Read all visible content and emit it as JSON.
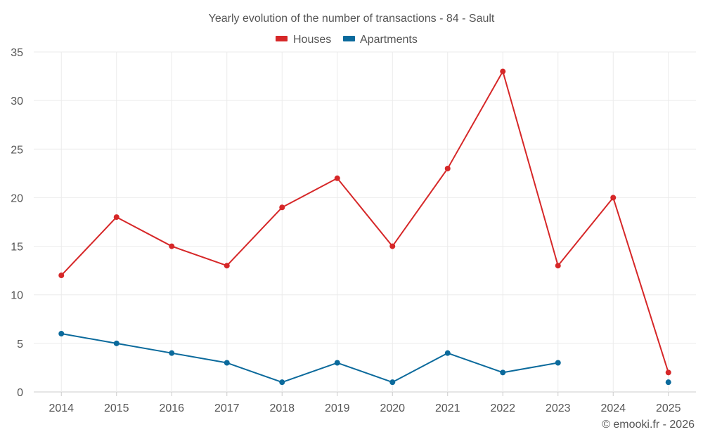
{
  "chart_data": {
    "type": "line",
    "title": "Yearly evolution of the number of transactions - 84 - Sault",
    "categories": [
      "2014",
      "2015",
      "2016",
      "2017",
      "2018",
      "2019",
      "2020",
      "2021",
      "2022",
      "2023",
      "2024",
      "2025"
    ],
    "series": [
      {
        "name": "Houses",
        "color": "#d62728",
        "values": [
          12,
          18,
          15,
          13,
          19,
          22,
          15,
          23,
          33,
          13,
          20,
          2
        ]
      },
      {
        "name": "Apartments",
        "color": "#0b6a9c",
        "values": [
          6,
          5,
          4,
          3,
          1,
          3,
          1,
          4,
          2,
          3,
          null,
          1
        ]
      }
    ],
    "ylim": [
      0,
      35
    ],
    "yticks": [
      0,
      5,
      10,
      15,
      20,
      25,
      30,
      35
    ],
    "xlabel": "",
    "ylabel": "",
    "grid": true,
    "legend": "top-center"
  },
  "credit": "© emooki.fr - 2026"
}
